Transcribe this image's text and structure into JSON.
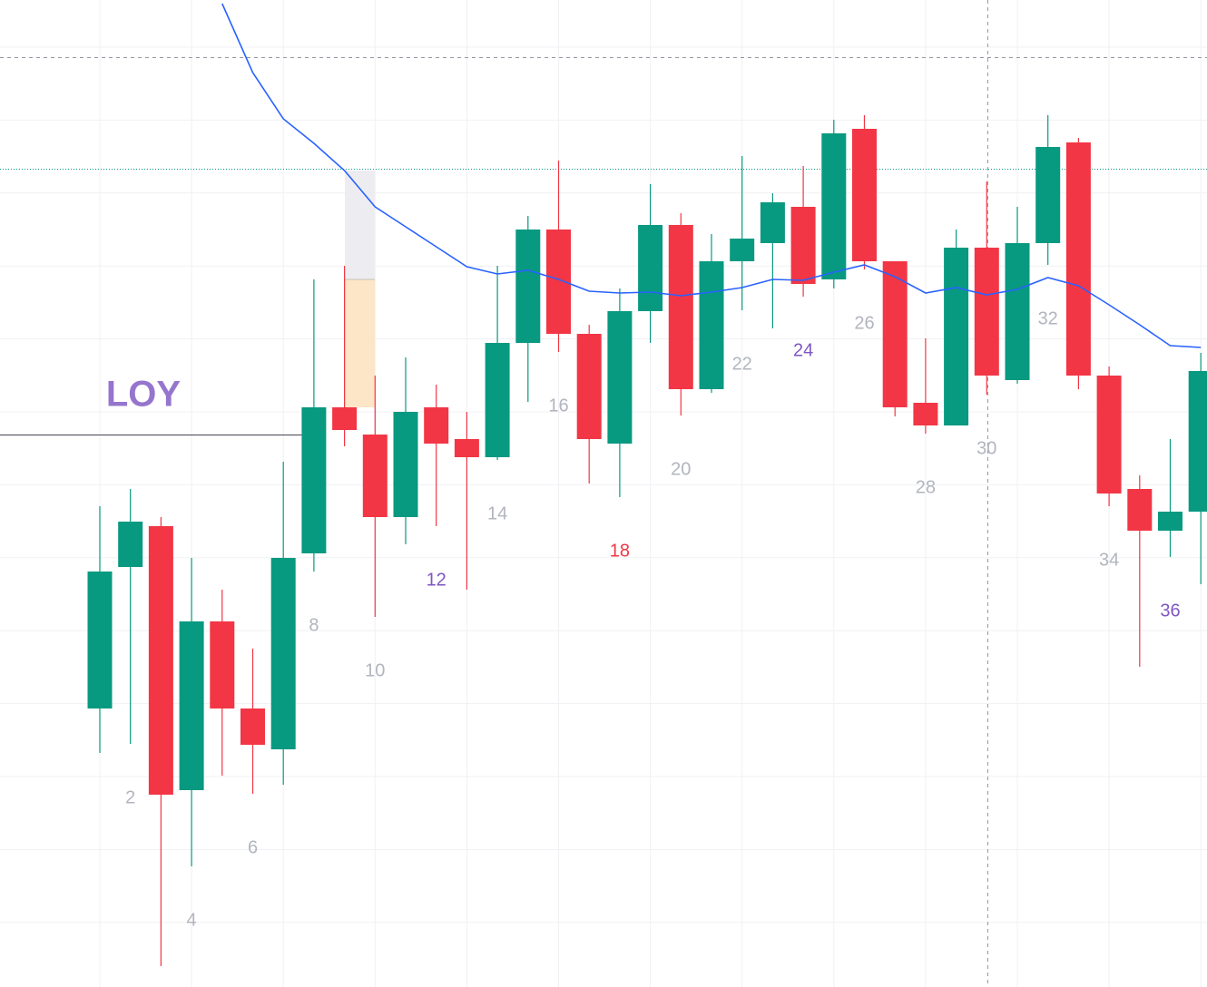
{
  "chart_data": {
    "type": "candlestick",
    "symbol_label": {
      "text": "LOY",
      "color": "#9575cd"
    },
    "up_color": "#089981",
    "down_color": "#f23645",
    "ylim": [
      0,
      1088
    ],
    "open": [
      307,
      463,
      508,
      217,
      403,
      307,
      262,
      478,
      639,
      609,
      518,
      639,
      604,
      584,
      710,
      835,
      720,
      599,
      745,
      840,
      659,
      800,
      820,
      860,
      780,
      946,
      800,
      644,
      619,
      815,
      669,
      820,
      931,
      674,
      549,
      503,
      524
    ],
    "high": [
      530,
      549,
      518,
      473,
      438,
      373,
      579,
      780,
      795,
      674,
      694,
      664,
      634,
      795,
      850,
      911,
      730,
      770,
      885,
      853,
      830,
      916,
      875,
      905,
      956,
      961,
      800,
      715,
      835,
      888,
      860,
      961,
      936,
      684,
      564,
      604,
      699
    ],
    "low": [
      258,
      268,
      23,
      133,
      233,
      213,
      223,
      458,
      596,
      408,
      488,
      508,
      438,
      581,
      645,
      700,
      555,
      540,
      710,
      630,
      655,
      746,
      726,
      761,
      770,
      791,
      629,
      610,
      619,
      653,
      665,
      796,
      659,
      530,
      353,
      474,
      444
    ],
    "close": [
      458,
      513,
      212,
      403,
      307,
      267,
      473,
      639,
      614,
      518,
      634,
      599,
      584,
      710,
      835,
      720,
      604,
      745,
      840,
      659,
      800,
      825,
      865,
      775,
      941,
      800,
      639,
      619,
      815,
      674,
      820,
      926,
      674,
      544,
      503,
      524,
      679
    ],
    "ma": {
      "color": "#2962ff",
      "values": [
        null,
        null,
        null,
        null,
        1084,
        1008,
        957,
        930,
        900,
        860,
        838,
        816,
        794,
        786,
        790,
        780,
        767,
        765,
        766,
        762,
        766,
        771,
        780,
        779,
        788,
        796,
        783,
        765,
        771,
        763,
        769,
        782,
        773,
        752,
        730,
        707,
        705
      ]
    },
    "bar_labels": [
      {
        "text": "2",
        "color": "#b2b5be"
      },
      {
        "text": "4",
        "color": "#b2b5be"
      },
      {
        "text": "6",
        "color": "#b2b5be"
      },
      {
        "text": "8",
        "color": "#b2b5be"
      },
      {
        "text": "10",
        "color": "#b2b5be"
      },
      {
        "text": "12",
        "color": "#7e57c2"
      },
      {
        "text": "14",
        "color": "#b2b5be"
      },
      {
        "text": "16",
        "color": "#b2b5be"
      },
      {
        "text": "18",
        "color": "#f23645"
      },
      {
        "text": "20",
        "color": "#b2b5be"
      },
      {
        "text": "22",
        "color": "#b2b5be"
      },
      {
        "text": "24",
        "color": "#7e57c2"
      },
      {
        "text": "26",
        "color": "#b2b5be"
      },
      {
        "text": "28",
        "color": "#b2b5be"
      },
      {
        "text": "30",
        "color": "#b2b5be"
      },
      {
        "text": "32",
        "color": "#b2b5be"
      },
      {
        "text": "34",
        "color": "#b2b5be"
      },
      {
        "text": "36",
        "color": "#7e57c2"
      }
    ]
  }
}
